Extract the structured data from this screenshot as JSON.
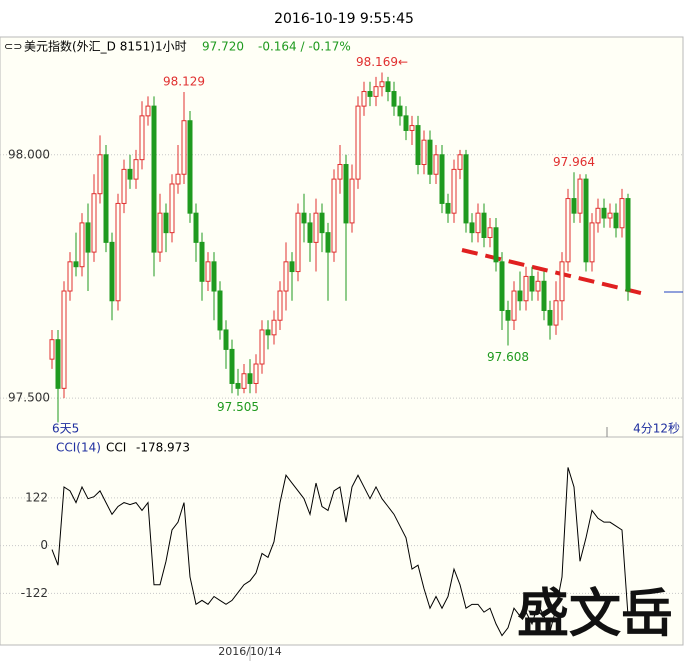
{
  "header": {
    "time": "2016-10-19 9:55:45"
  },
  "legend": {
    "name": "美元指数(外汇_D 8151)1小时",
    "last": "97.720",
    "change": "-0.164 / -0.17%"
  },
  "watermark": "盛文岳",
  "chart_data": [
    {
      "type": "candlestick",
      "open": [
        97.58,
        97.62,
        97.52,
        97.72,
        97.78,
        97.77,
        97.86,
        97.8,
        97.92,
        98.0,
        97.82,
        97.7,
        97.9,
        97.97,
        97.95,
        97.99,
        98.08,
        98.1,
        97.8,
        97.88,
        97.84,
        97.94,
        97.96,
        98.07,
        97.88,
        97.82,
        97.74,
        97.78,
        97.72,
        97.64,
        97.6,
        97.53,
        97.52,
        97.55,
        97.53,
        97.57,
        97.64,
        97.63,
        97.66,
        97.72,
        97.78,
        97.76,
        97.88,
        97.86,
        97.82,
        97.88,
        97.84,
        97.8,
        97.95,
        97.98,
        97.86,
        97.95,
        98.1,
        98.13,
        98.12,
        98.14,
        98.15,
        98.13,
        98.1,
        98.08,
        98.05,
        98.06,
        97.98,
        98.03,
        97.96,
        98.0,
        97.9,
        97.88,
        97.97,
        98.0,
        97.86,
        97.84,
        97.88,
        97.83,
        97.85,
        97.78,
        97.68,
        97.66,
        97.72,
        97.7,
        97.75,
        97.72,
        97.74,
        97.68,
        97.65,
        97.7,
        97.78,
        97.91,
        97.88,
        97.95,
        97.78,
        97.86,
        97.89,
        97.87,
        97.88,
        97.85,
        97.91
      ],
      "high": [
        97.64,
        97.64,
        97.74,
        97.8,
        97.84,
        97.88,
        97.9,
        97.96,
        98.04,
        98.02,
        97.84,
        97.92,
        97.99,
        98.0,
        98.01,
        98.11,
        98.12,
        98.12,
        97.92,
        97.9,
        97.96,
        98.02,
        98.129,
        98.09,
        97.9,
        97.84,
        97.8,
        97.8,
        97.74,
        97.66,
        97.62,
        97.56,
        97.57,
        97.58,
        97.59,
        97.66,
        97.66,
        97.68,
        97.74,
        97.82,
        97.8,
        97.9,
        97.92,
        97.88,
        97.91,
        97.9,
        97.86,
        97.97,
        98.02,
        98.0,
        97.98,
        98.12,
        98.15,
        98.15,
        98.16,
        98.169,
        98.16,
        98.15,
        98.12,
        98.1,
        98.08,
        98.08,
        98.05,
        98.05,
        98.02,
        98.02,
        97.92,
        97.99,
        98.01,
        98.01,
        97.88,
        97.9,
        97.9,
        97.87,
        97.87,
        97.8,
        97.7,
        97.74,
        97.76,
        97.77,
        97.77,
        97.76,
        97.76,
        97.7,
        97.74,
        97.8,
        97.93,
        97.964,
        97.96,
        97.96,
        97.88,
        97.91,
        97.91,
        97.9,
        97.9,
        97.93,
        97.92
      ],
      "low": [
        97.56,
        97.45,
        97.5,
        97.7,
        97.75,
        97.75,
        97.72,
        97.78,
        97.9,
        97.8,
        97.66,
        97.68,
        97.88,
        97.93,
        97.93,
        97.97,
        98.06,
        97.75,
        97.78,
        97.8,
        97.82,
        97.92,
        97.94,
        97.86,
        97.78,
        97.7,
        97.72,
        97.66,
        97.62,
        97.56,
        97.51,
        97.505,
        97.51,
        97.51,
        97.51,
        97.55,
        97.6,
        97.61,
        97.64,
        97.68,
        97.7,
        97.74,
        97.82,
        97.78,
        97.76,
        97.8,
        97.7,
        97.78,
        97.92,
        97.7,
        97.84,
        97.93,
        98.08,
        98.1,
        98.1,
        98.12,
        98.11,
        98.08,
        98.06,
        98.03,
        98.02,
        97.96,
        97.96,
        97.94,
        97.94,
        97.88,
        97.86,
        97.86,
        97.95,
        97.84,
        97.82,
        97.82,
        97.81,
        97.81,
        97.76,
        97.64,
        97.608,
        97.64,
        97.68,
        97.68,
        97.7,
        97.7,
        97.66,
        97.62,
        97.63,
        97.66,
        97.76,
        97.86,
        97.86,
        97.76,
        97.76,
        97.84,
        97.85,
        97.85,
        97.83,
        97.83,
        97.7
      ],
      "close": [
        97.62,
        97.52,
        97.72,
        97.78,
        97.77,
        97.86,
        97.8,
        97.92,
        98.0,
        97.82,
        97.7,
        97.9,
        97.97,
        97.95,
        97.99,
        98.08,
        98.1,
        97.8,
        97.88,
        97.84,
        97.94,
        97.96,
        98.07,
        97.88,
        97.82,
        97.74,
        97.78,
        97.72,
        97.64,
        97.6,
        97.53,
        97.52,
        97.55,
        97.53,
        97.57,
        97.64,
        97.63,
        97.66,
        97.72,
        97.78,
        97.76,
        97.88,
        97.86,
        97.82,
        97.88,
        97.84,
        97.8,
        97.95,
        97.98,
        97.86,
        97.95,
        98.1,
        98.13,
        98.12,
        98.14,
        98.15,
        98.13,
        98.1,
        98.08,
        98.05,
        98.06,
        97.98,
        98.03,
        97.96,
        98.0,
        97.9,
        97.88,
        97.97,
        98.0,
        97.86,
        97.84,
        97.88,
        97.83,
        97.85,
        97.78,
        97.68,
        97.66,
        97.72,
        97.7,
        97.75,
        97.72,
        97.74,
        97.68,
        97.65,
        97.7,
        97.78,
        97.91,
        97.88,
        97.95,
        97.78,
        97.86,
        97.89,
        97.87,
        97.88,
        97.85,
        97.91,
        97.72
      ],
      "ylim": [
        97.42,
        98.24
      ],
      "yticks": [
        {
          "value": 98,
          "label": "98.000"
        },
        {
          "value": 97.5,
          "label": "97.500"
        }
      ],
      "up_color": "#e03030",
      "down_color": "#1f9a1f",
      "annotations": [
        {
          "text": "98.129",
          "value": 98.129
        },
        {
          "text": "98.169←",
          "value": 98.169
        },
        {
          "text": "97.505",
          "value": 97.505
        },
        {
          "text": "97.608",
          "value": 97.608
        },
        {
          "text": "97.964",
          "value": 97.964
        }
      ],
      "x_label_left": "6天5",
      "x_label_right": "4分12秒"
    },
    {
      "type": "line",
      "title": "CCI(14)",
      "series": [
        {
          "name": "CCI",
          "color": "#000000",
          "values": [
            -10,
            -50,
            150,
            140,
            110,
            150,
            120,
            125,
            140,
            110,
            80,
            100,
            110,
            105,
            110,
            90,
            110,
            -100,
            -100,
            -40,
            40,
            60,
            110,
            -80,
            -150,
            -140,
            -150,
            -130,
            -140,
            -150,
            -140,
            -120,
            -100,
            -90,
            -70,
            -20,
            -30,
            10,
            110,
            180,
            160,
            140,
            120,
            80,
            160,
            100,
            90,
            140,
            150,
            60,
            150,
            180,
            150,
            120,
            150,
            120,
            100,
            80,
            50,
            20,
            -60,
            -50,
            -110,
            -160,
            -130,
            -160,
            -130,
            -60,
            -100,
            -160,
            -150,
            -150,
            -170,
            -160,
            -200,
            -230,
            -210,
            -160,
            -180,
            -170,
            -200,
            -150,
            -180,
            -220,
            -160,
            -80,
            200,
            150,
            -40,
            20,
            90,
            70,
            60,
            60,
            50,
            40,
            -178.973
          ]
        }
      ],
      "value_label": "-178.973",
      "ylim": [
        -254,
        270
      ],
      "yticks": [
        122,
        0,
        -122
      ],
      "xticks": [
        {
          "value": 33,
          "label": "2016/10/14"
        }
      ]
    }
  ]
}
